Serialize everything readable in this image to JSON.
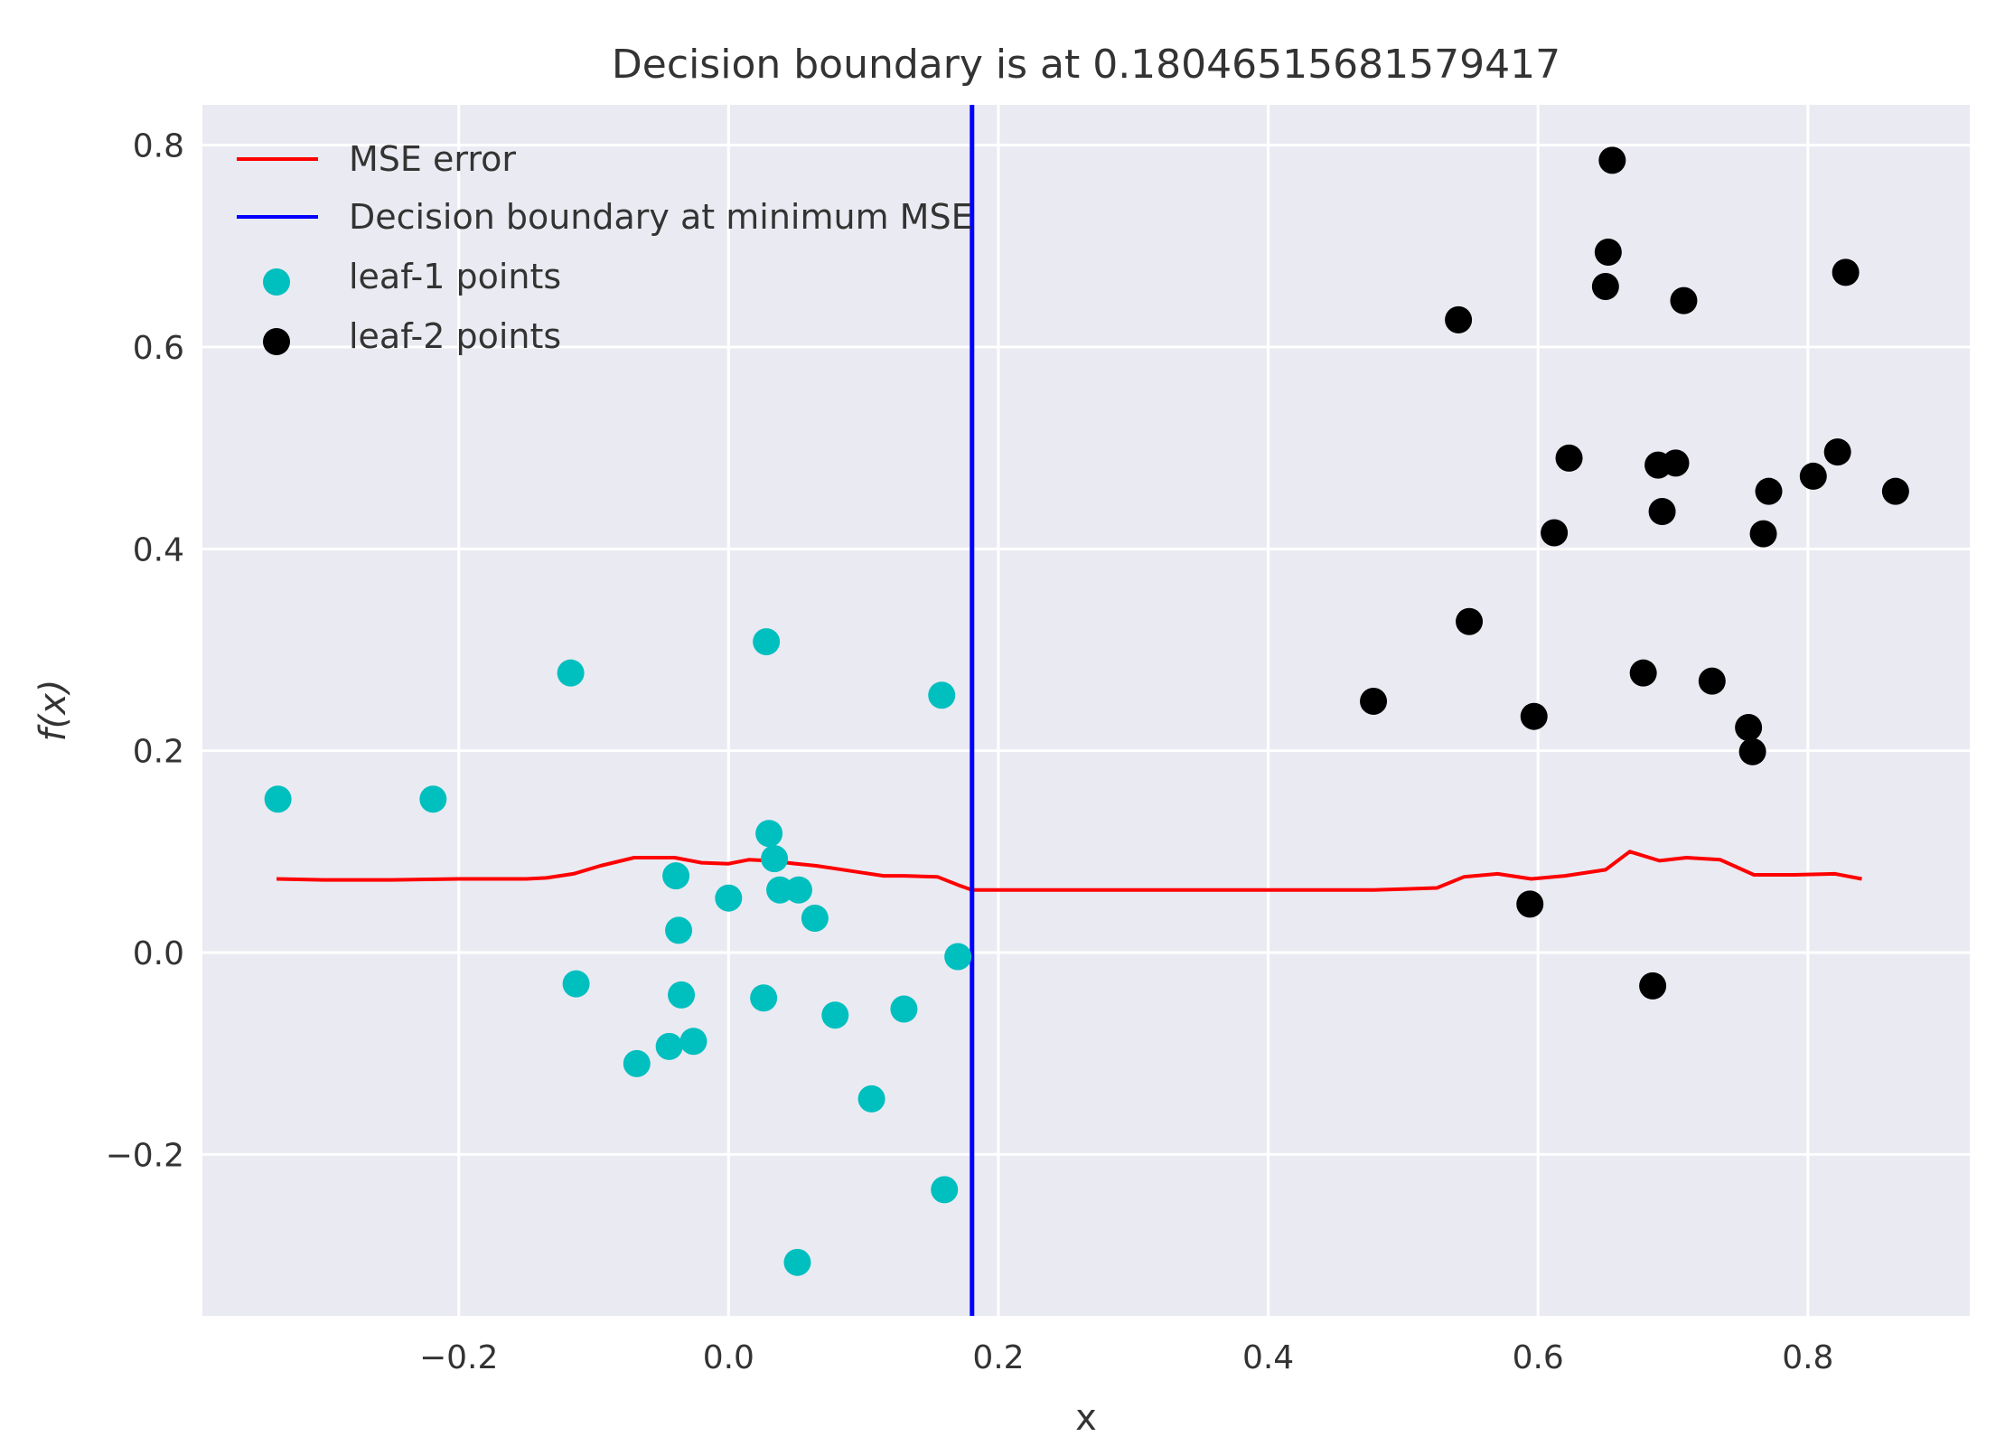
{
  "chart_data": {
    "type": "scatter",
    "title": "Decision boundary is at 0.18046515681579417",
    "xlabel": "x",
    "ylabel": "f(x)",
    "xlim": [
      -0.39,
      0.92
    ],
    "ylim": [
      -0.36,
      0.84
    ],
    "xticks": [
      -0.2,
      0.0,
      0.2,
      0.4,
      0.6,
      0.8
    ],
    "xtick_labels": [
      "−0.2",
      "0.0",
      "0.2",
      "0.4",
      "0.6",
      "0.8"
    ],
    "yticks": [
      -0.2,
      0.0,
      0.2,
      0.4,
      0.6,
      0.8
    ],
    "ytick_labels": [
      "−0.2",
      "0.0",
      "0.2",
      "0.4",
      "0.6",
      "0.8"
    ],
    "grid": true,
    "legend_position": "top-left",
    "background": "#eaeaf2",
    "decision_boundary": 0.18046515681579417,
    "series": [
      {
        "name": "MSE error",
        "kind": "line",
        "color": "#ff0000",
        "x": [
          -0.335,
          -0.3,
          -0.25,
          -0.2,
          -0.15,
          -0.135,
          -0.115,
          -0.095,
          -0.07,
          -0.04,
          -0.02,
          0.0,
          0.015,
          0.03,
          0.05,
          0.065,
          0.08,
          0.1,
          0.115,
          0.13,
          0.155,
          0.17,
          0.18046515681579417,
          0.3,
          0.4,
          0.478,
          0.5,
          0.525,
          0.545,
          0.57,
          0.595,
          0.62,
          0.65,
          0.668,
          0.69,
          0.71,
          0.735,
          0.76,
          0.79,
          0.82,
          0.84
        ],
        "values": [
          0.073,
          0.072,
          0.072,
          0.073,
          0.073,
          0.074,
          0.078,
          0.086,
          0.094,
          0.094,
          0.089,
          0.088,
          0.092,
          0.091,
          0.088,
          0.086,
          0.083,
          0.079,
          0.076,
          0.076,
          0.075,
          0.067,
          0.062,
          0.062,
          0.062,
          0.062,
          0.063,
          0.064,
          0.075,
          0.078,
          0.073,
          0.076,
          0.082,
          0.1,
          0.091,
          0.094,
          0.092,
          0.077,
          0.077,
          0.078,
          0.073
        ]
      },
      {
        "name": "Decision boundary at minimum MSE",
        "kind": "vline",
        "color": "#0000ff",
        "x": 0.18046515681579417
      },
      {
        "name": "leaf-1 points",
        "kind": "scatter",
        "color": "#00bfbf",
        "points": [
          [
            -0.334,
            0.152
          ],
          [
            -0.219,
            0.152
          ],
          [
            -0.117,
            0.277
          ],
          [
            -0.113,
            -0.031
          ],
          [
            -0.068,
            -0.11
          ],
          [
            -0.044,
            -0.093
          ],
          [
            -0.039,
            0.076
          ],
          [
            -0.037,
            0.022
          ],
          [
            -0.035,
            -0.042
          ],
          [
            -0.026,
            -0.088
          ],
          [
            0.0,
            0.054
          ],
          [
            0.026,
            -0.045
          ],
          [
            0.028,
            0.308
          ],
          [
            0.03,
            0.118
          ],
          [
            0.034,
            0.093
          ],
          [
            0.038,
            0.062
          ],
          [
            0.051,
            -0.307
          ],
          [
            0.052,
            0.062
          ],
          [
            0.064,
            0.034
          ],
          [
            0.079,
            -0.062
          ],
          [
            0.106,
            -0.145
          ],
          [
            0.13,
            -0.056
          ],
          [
            0.158,
            0.255
          ],
          [
            0.16,
            -0.235
          ],
          [
            0.17,
            -0.004
          ]
        ]
      },
      {
        "name": "leaf-2 points",
        "kind": "scatter",
        "color": "#000000",
        "points": [
          [
            0.478,
            0.249
          ],
          [
            0.541,
            0.627
          ],
          [
            0.549,
            0.328
          ],
          [
            0.594,
            0.048
          ],
          [
            0.597,
            0.234
          ],
          [
            0.612,
            0.416
          ],
          [
            0.623,
            0.49
          ],
          [
            0.65,
            0.66
          ],
          [
            0.652,
            0.694
          ],
          [
            0.655,
            0.785
          ],
          [
            0.678,
            0.277
          ],
          [
            0.685,
            -0.033
          ],
          [
            0.689,
            0.483
          ],
          [
            0.692,
            0.437
          ],
          [
            0.702,
            0.485
          ],
          [
            0.708,
            0.646
          ],
          [
            0.729,
            0.269
          ],
          [
            0.756,
            0.223
          ],
          [
            0.759,
            0.199
          ],
          [
            0.767,
            0.415
          ],
          [
            0.771,
            0.457
          ],
          [
            0.804,
            0.472
          ],
          [
            0.822,
            0.496
          ],
          [
            0.828,
            0.674
          ],
          [
            0.865,
            0.457
          ]
        ]
      }
    ]
  }
}
